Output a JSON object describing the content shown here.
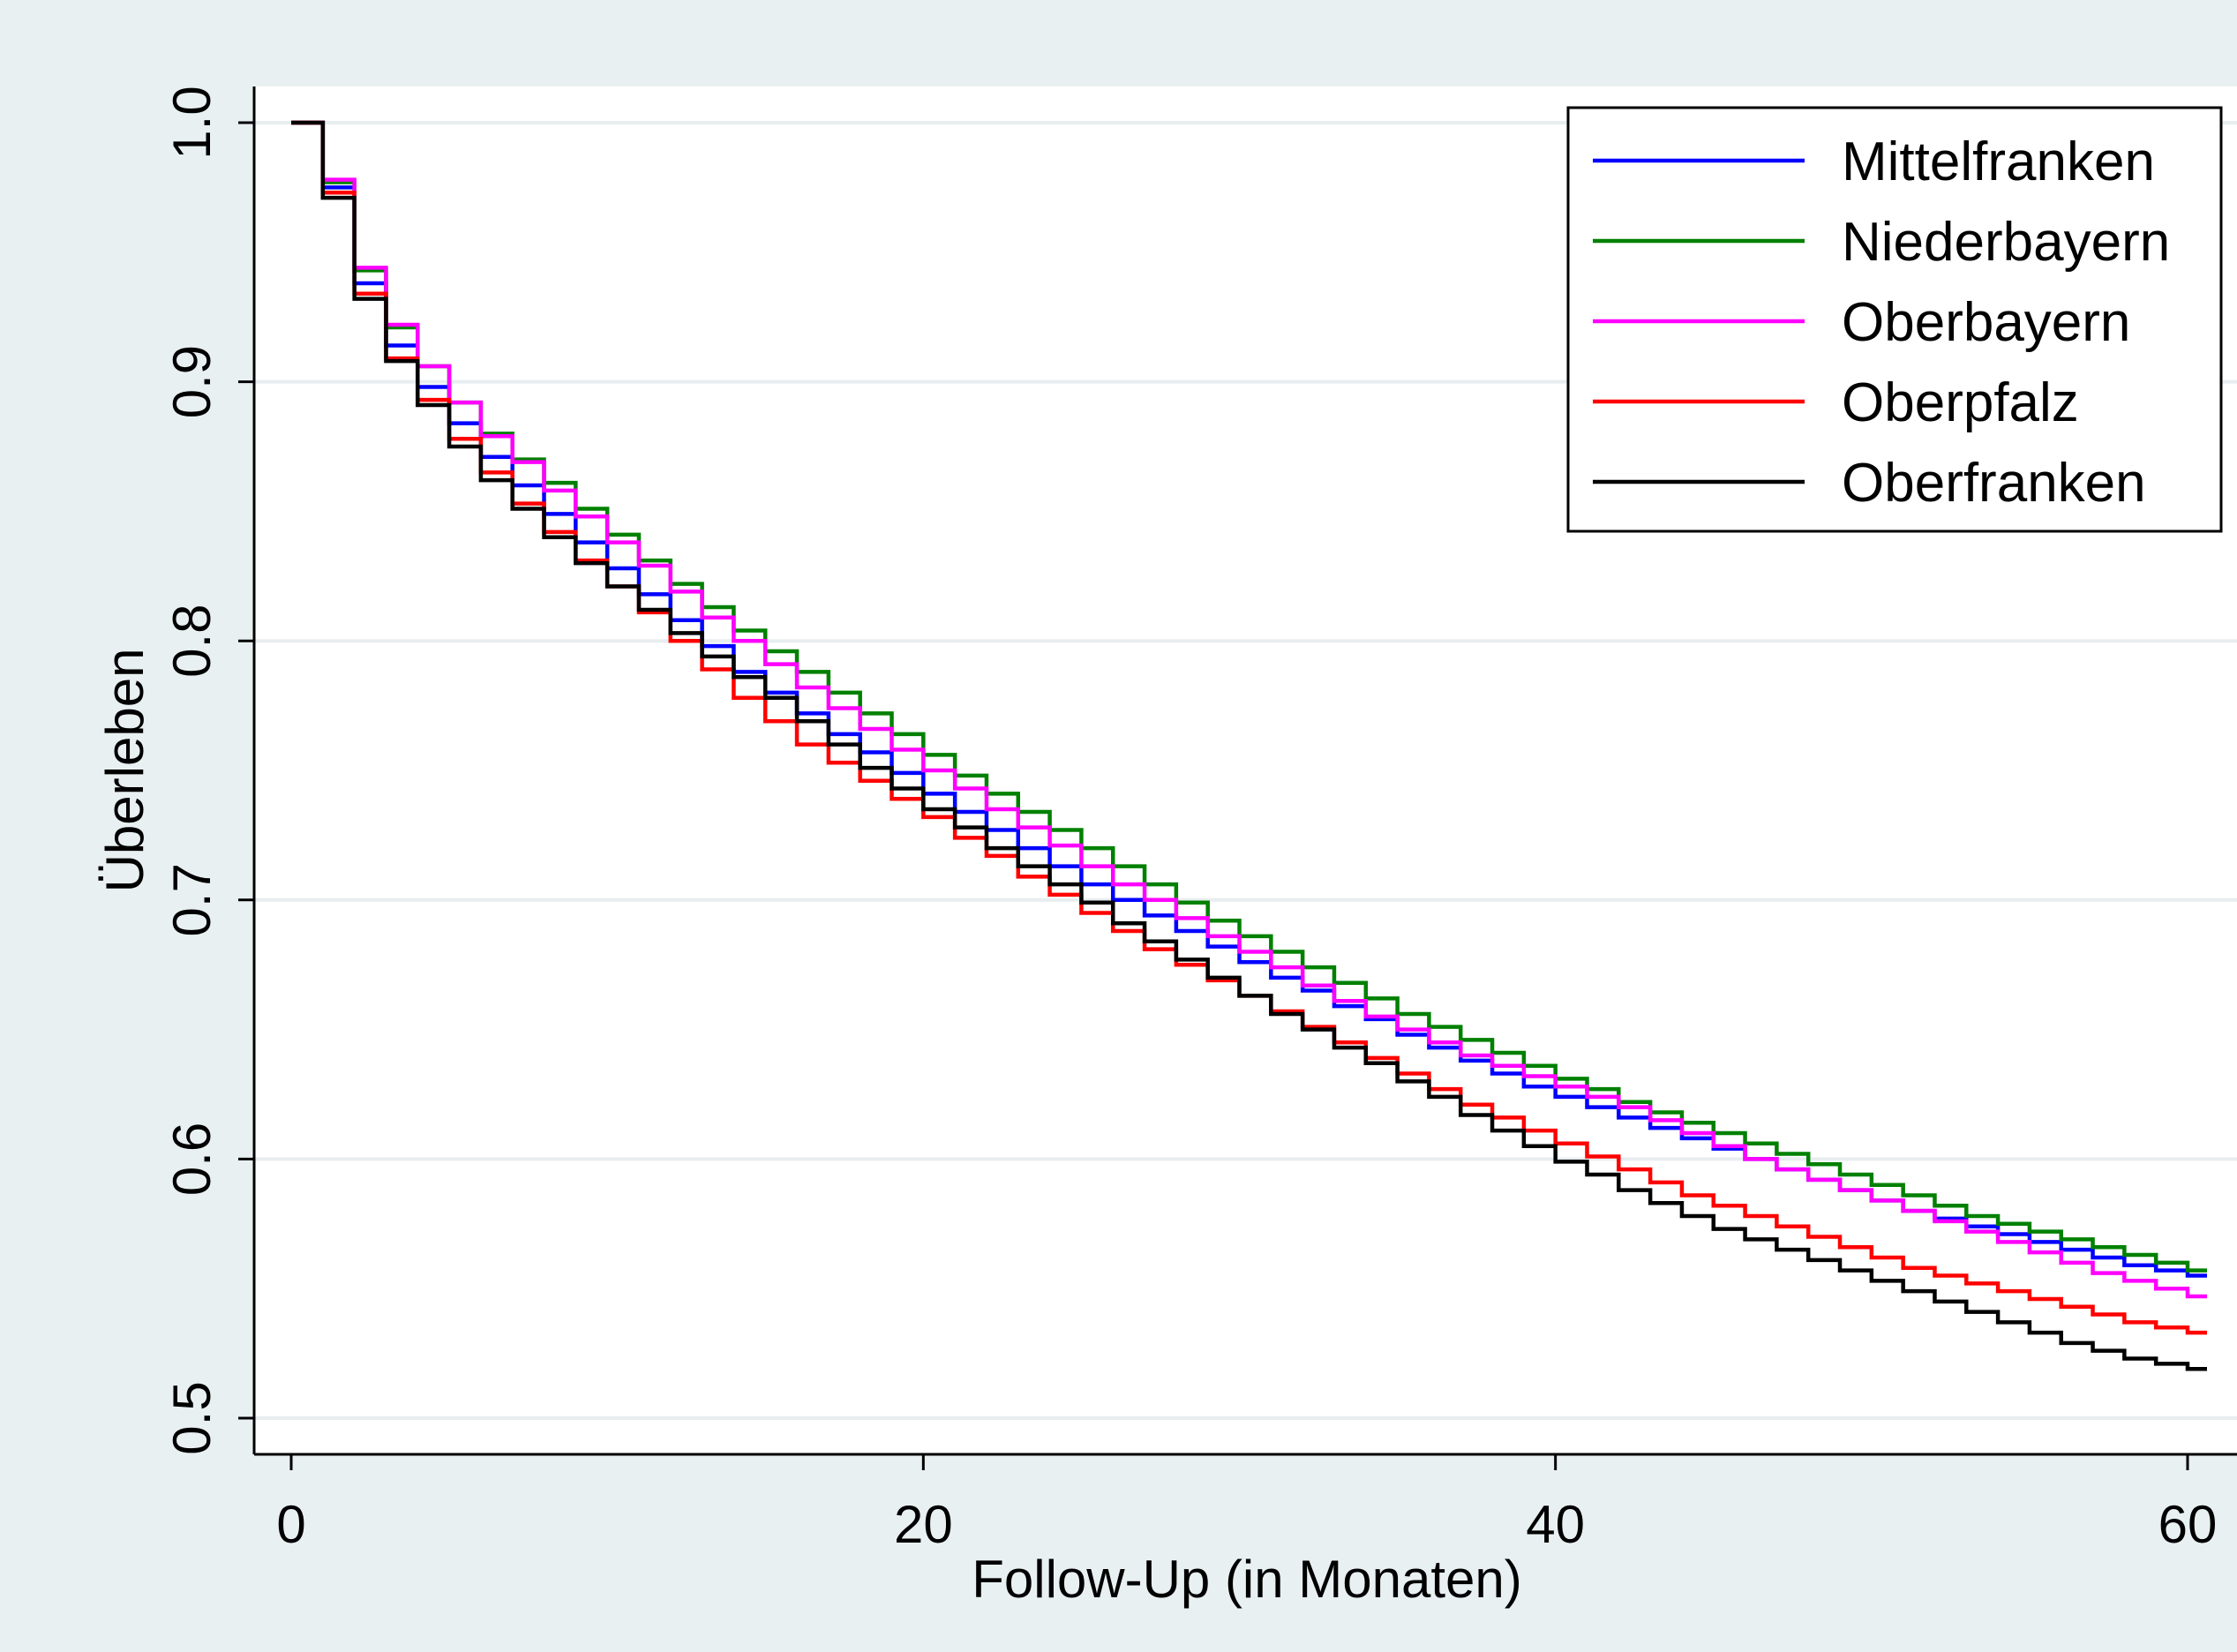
{
  "chart_data": {
    "type": "line",
    "title": "",
    "xlabel": "Follow-Up (in Monaten)",
    "ylabel": "Überleben",
    "xlim": [
      0,
      60
    ],
    "ylim": [
      0.5,
      1.0
    ],
    "x_ticks": [
      0,
      20,
      40,
      60
    ],
    "y_ticks": [
      0.5,
      0.6,
      0.7,
      0.8,
      0.9,
      1.0
    ],
    "x_tick_labels": [
      "0",
      "20",
      "40",
      "60"
    ],
    "y_tick_labels": [
      "0.5",
      "0.6",
      "0.7",
      "0.8",
      "0.9",
      "1.0"
    ],
    "grid": "horizontal",
    "legend_position": "top-right",
    "step": true,
    "x": [
      0,
      1,
      2,
      3,
      4,
      5,
      6,
      7,
      8,
      9,
      10,
      11,
      12,
      13,
      14,
      15,
      16,
      17,
      18,
      19,
      20,
      21,
      22,
      23,
      24,
      25,
      26,
      27,
      28,
      29,
      30,
      31,
      32,
      33,
      34,
      35,
      36,
      37,
      38,
      39,
      40,
      41,
      42,
      43,
      44,
      45,
      46,
      47,
      48,
      49,
      50,
      51,
      52,
      53,
      54,
      55,
      56,
      57,
      58,
      59,
      60
    ],
    "series": [
      {
        "name": "Mittelfranken",
        "color": "#0000ff",
        "values": [
          1.0,
          0.975,
          0.938,
          0.914,
          0.898,
          0.884,
          0.871,
          0.86,
          0.849,
          0.838,
          0.828,
          0.818,
          0.808,
          0.798,
          0.788,
          0.78,
          0.772,
          0.764,
          0.757,
          0.749,
          0.741,
          0.734,
          0.727,
          0.72,
          0.713,
          0.706,
          0.7,
          0.694,
          0.688,
          0.682,
          0.676,
          0.67,
          0.665,
          0.659,
          0.654,
          0.648,
          0.643,
          0.638,
          0.633,
          0.628,
          0.624,
          0.62,
          0.616,
          0.612,
          0.608,
          0.604,
          0.6,
          0.596,
          0.592,
          0.588,
          0.584,
          0.58,
          0.577,
          0.574,
          0.571,
          0.568,
          0.565,
          0.562,
          0.559,
          0.557,
          0.555
        ]
      },
      {
        "name": "Niederbayern",
        "color": "#008000",
        "values": [
          1.0,
          0.977,
          0.943,
          0.921,
          0.906,
          0.892,
          0.88,
          0.87,
          0.861,
          0.851,
          0.841,
          0.831,
          0.822,
          0.813,
          0.804,
          0.796,
          0.788,
          0.78,
          0.772,
          0.764,
          0.756,
          0.748,
          0.741,
          0.734,
          0.727,
          0.72,
          0.713,
          0.706,
          0.699,
          0.692,
          0.686,
          0.68,
          0.674,
          0.668,
          0.662,
          0.656,
          0.651,
          0.646,
          0.641,
          0.636,
          0.631,
          0.627,
          0.622,
          0.618,
          0.614,
          0.61,
          0.606,
          0.602,
          0.598,
          0.594,
          0.59,
          0.586,
          0.582,
          0.578,
          0.575,
          0.572,
          0.569,
          0.566,
          0.563,
          0.56,
          0.557
        ]
      },
      {
        "name": "Oberbayern",
        "color": "#ff00ff",
        "values": [
          1.0,
          0.978,
          0.944,
          0.922,
          0.906,
          0.892,
          0.879,
          0.869,
          0.858,
          0.848,
          0.838,
          0.829,
          0.819,
          0.809,
          0.8,
          0.791,
          0.782,
          0.774,
          0.766,
          0.758,
          0.75,
          0.743,
          0.735,
          0.728,
          0.721,
          0.713,
          0.706,
          0.7,
          0.693,
          0.686,
          0.68,
          0.674,
          0.667,
          0.661,
          0.655,
          0.65,
          0.645,
          0.64,
          0.636,
          0.632,
          0.628,
          0.624,
          0.62,
          0.615,
          0.61,
          0.605,
          0.6,
          0.596,
          0.592,
          0.588,
          0.584,
          0.58,
          0.576,
          0.572,
          0.568,
          0.564,
          0.56,
          0.556,
          0.553,
          0.55,
          0.547
        ]
      },
      {
        "name": "Oberpfalz",
        "color": "#ff0000",
        "values": [
          1.0,
          0.973,
          0.934,
          0.909,
          0.893,
          0.878,
          0.865,
          0.853,
          0.842,
          0.831,
          0.821,
          0.811,
          0.8,
          0.789,
          0.778,
          0.769,
          0.76,
          0.753,
          0.746,
          0.739,
          0.732,
          0.724,
          0.717,
          0.709,
          0.702,
          0.695,
          0.688,
          0.681,
          0.675,
          0.669,
          0.663,
          0.657,
          0.651,
          0.645,
          0.639,
          0.633,
          0.627,
          0.621,
          0.616,
          0.611,
          0.606,
          0.601,
          0.596,
          0.591,
          0.586,
          0.582,
          0.578,
          0.574,
          0.57,
          0.566,
          0.562,
          0.558,
          0.555,
          0.552,
          0.549,
          0.546,
          0.543,
          0.54,
          0.537,
          0.535,
          0.533
        ]
      },
      {
        "name": "Oberfranken",
        "color": "#000000",
        "values": [
          1.0,
          0.971,
          0.932,
          0.908,
          0.891,
          0.875,
          0.862,
          0.851,
          0.84,
          0.83,
          0.821,
          0.812,
          0.803,
          0.794,
          0.786,
          0.778,
          0.769,
          0.76,
          0.751,
          0.743,
          0.735,
          0.728,
          0.72,
          0.713,
          0.706,
          0.699,
          0.691,
          0.684,
          0.677,
          0.67,
          0.663,
          0.656,
          0.65,
          0.643,
          0.637,
          0.63,
          0.624,
          0.617,
          0.611,
          0.605,
          0.599,
          0.594,
          0.588,
          0.583,
          0.578,
          0.573,
          0.569,
          0.565,
          0.561,
          0.557,
          0.553,
          0.549,
          0.545,
          0.541,
          0.537,
          0.533,
          0.529,
          0.526,
          0.523,
          0.521,
          0.519
        ]
      }
    ]
  },
  "colors": {
    "outer_background": "#e9f0f2",
    "plot_background": "#ffffff",
    "grid": "#e8eef0",
    "axis": "#000000"
  }
}
